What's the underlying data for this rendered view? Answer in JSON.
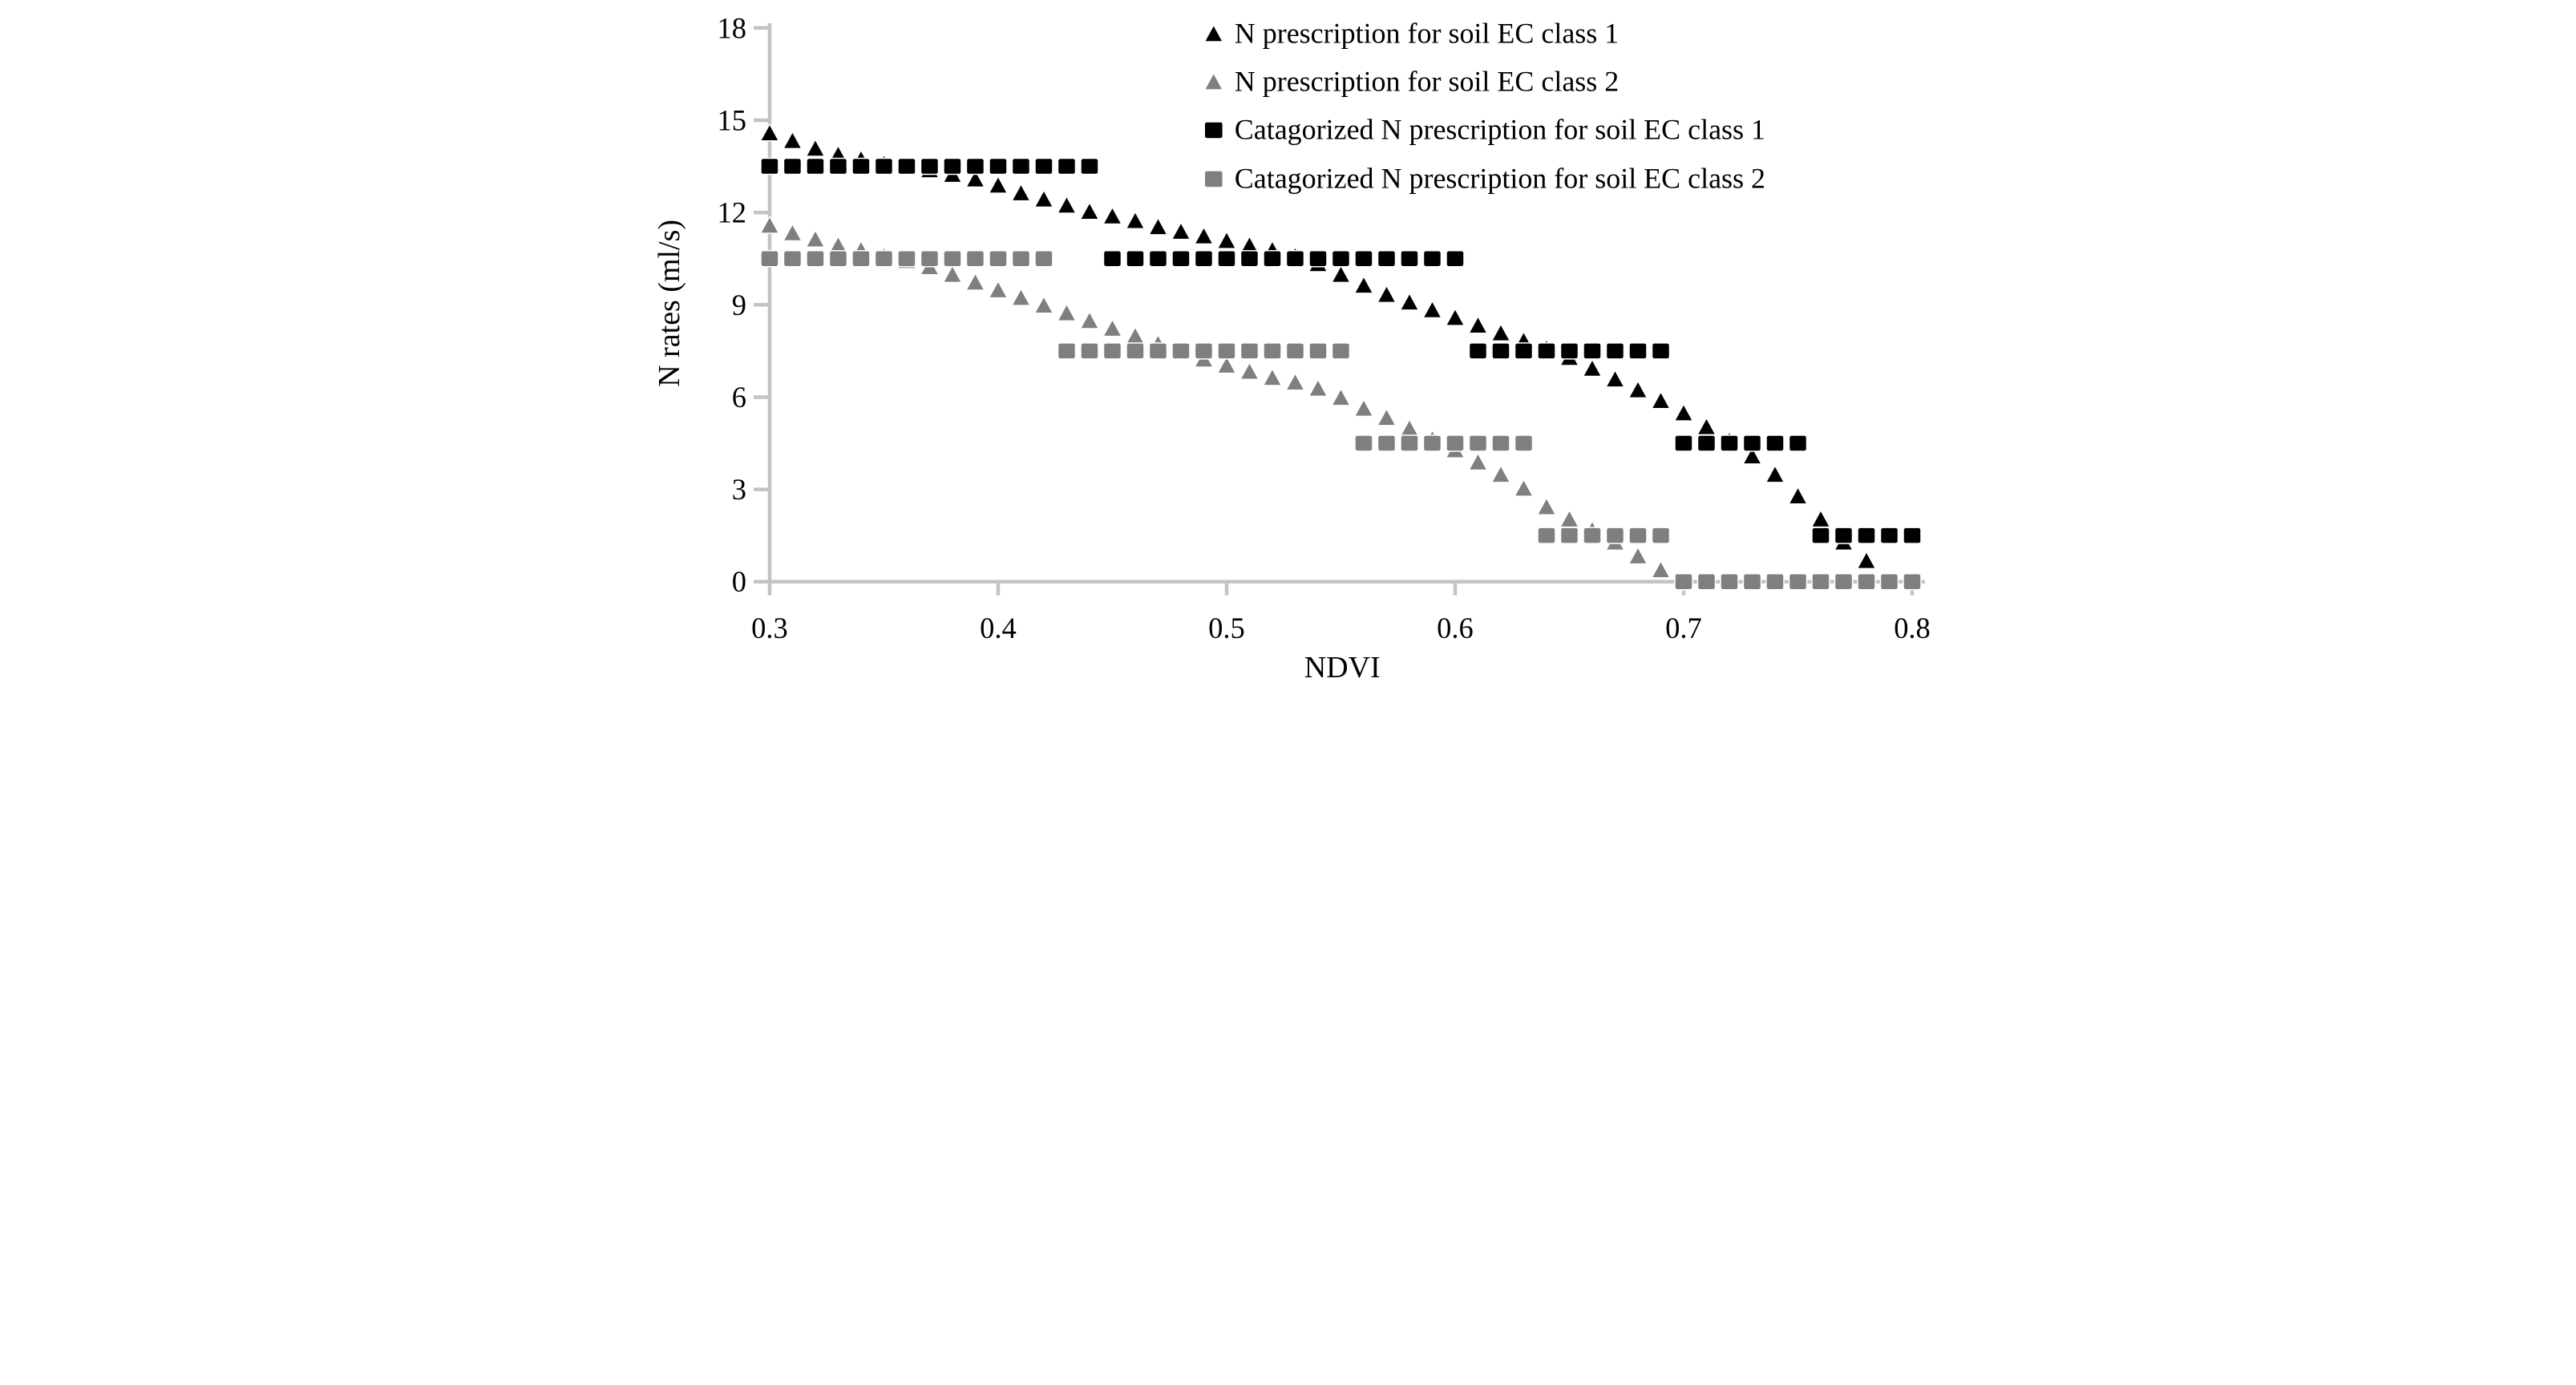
{
  "chart_data": {
    "type": "scatter",
    "title": "",
    "xlabel": "NDVI",
    "ylabel": "N rates (ml/s)",
    "xlim": [
      0.3,
      0.8
    ],
    "ylim": [
      0,
      18
    ],
    "x_ticks": [
      "0.3",
      "0.4",
      "0.5",
      "0.6",
      "0.7",
      "0.8"
    ],
    "y_ticks": [
      "0",
      "3",
      "6",
      "9",
      "12",
      "15",
      "18"
    ],
    "grid": false,
    "legend_position": "top-right-inside",
    "colors": {
      "class1": "#000000",
      "class2": "#7f7f7f",
      "axis": "#c3c3c3",
      "text": "#000000",
      "background": "#ffffff"
    },
    "series": [
      {
        "name": "N prescription for soil EC class 1",
        "marker": "triangle",
        "color": "#000000",
        "points": [
          [
            0.3,
            14.6
          ],
          [
            0.31,
            14.35
          ],
          [
            0.32,
            14.1
          ],
          [
            0.33,
            13.9
          ],
          [
            0.34,
            13.75
          ],
          [
            0.35,
            13.6
          ],
          [
            0.36,
            13.5
          ],
          [
            0.37,
            13.4
          ],
          [
            0.38,
            13.25
          ],
          [
            0.39,
            13.1
          ],
          [
            0.4,
            12.9
          ],
          [
            0.41,
            12.65
          ],
          [
            0.42,
            12.45
          ],
          [
            0.43,
            12.25
          ],
          [
            0.44,
            12.05
          ],
          [
            0.45,
            11.9
          ],
          [
            0.46,
            11.75
          ],
          [
            0.47,
            11.55
          ],
          [
            0.48,
            11.4
          ],
          [
            0.49,
            11.25
          ],
          [
            0.5,
            11.1
          ],
          [
            0.51,
            10.95
          ],
          [
            0.52,
            10.8
          ],
          [
            0.53,
            10.6
          ],
          [
            0.54,
            10.35
          ],
          [
            0.55,
            10.0
          ],
          [
            0.56,
            9.65
          ],
          [
            0.57,
            9.35
          ],
          [
            0.58,
            9.1
          ],
          [
            0.59,
            8.85
          ],
          [
            0.6,
            8.6
          ],
          [
            0.61,
            8.35
          ],
          [
            0.62,
            8.1
          ],
          [
            0.63,
            7.85
          ],
          [
            0.64,
            7.6
          ],
          [
            0.65,
            7.3
          ],
          [
            0.66,
            6.95
          ],
          [
            0.67,
            6.6
          ],
          [
            0.68,
            6.25
          ],
          [
            0.69,
            5.9
          ],
          [
            0.7,
            5.5
          ],
          [
            0.71,
            5.05
          ],
          [
            0.72,
            4.6
          ],
          [
            0.73,
            4.1
          ],
          [
            0.74,
            3.5
          ],
          [
            0.75,
            2.8
          ],
          [
            0.76,
            2.05
          ],
          [
            0.77,
            1.3
          ],
          [
            0.78,
            0.7
          ]
        ]
      },
      {
        "name": "N prescription for soil EC class 2",
        "marker": "triangle",
        "color": "#7f7f7f",
        "points": [
          [
            0.3,
            11.6
          ],
          [
            0.31,
            11.35
          ],
          [
            0.32,
            11.15
          ],
          [
            0.33,
            10.95
          ],
          [
            0.34,
            10.8
          ],
          [
            0.35,
            10.6
          ],
          [
            0.36,
            10.45
          ],
          [
            0.37,
            10.25
          ],
          [
            0.38,
            10.0
          ],
          [
            0.39,
            9.75
          ],
          [
            0.4,
            9.5
          ],
          [
            0.41,
            9.25
          ],
          [
            0.42,
            9.0
          ],
          [
            0.43,
            8.75
          ],
          [
            0.44,
            8.5
          ],
          [
            0.45,
            8.25
          ],
          [
            0.46,
            8.0
          ],
          [
            0.47,
            7.75
          ],
          [
            0.48,
            7.5
          ],
          [
            0.49,
            7.25
          ],
          [
            0.5,
            7.05
          ],
          [
            0.51,
            6.85
          ],
          [
            0.52,
            6.65
          ],
          [
            0.53,
            6.5
          ],
          [
            0.54,
            6.3
          ],
          [
            0.55,
            6.0
          ],
          [
            0.56,
            5.65
          ],
          [
            0.57,
            5.35
          ],
          [
            0.58,
            5.0
          ],
          [
            0.59,
            4.65
          ],
          [
            0.6,
            4.3
          ],
          [
            0.61,
            3.9
          ],
          [
            0.62,
            3.5
          ],
          [
            0.63,
            3.05
          ],
          [
            0.64,
            2.45
          ],
          [
            0.65,
            2.05
          ],
          [
            0.66,
            1.7
          ],
          [
            0.67,
            1.3
          ],
          [
            0.68,
            0.85
          ],
          [
            0.69,
            0.4
          ],
          [
            0.7,
            0.0
          ]
        ]
      },
      {
        "name": "Catagorized N prescription for soil EC class 1",
        "marker": "square",
        "color": "#000000",
        "x_step": 0.01,
        "steps": [
          {
            "x_from": 0.3,
            "x_to": 0.44,
            "value": 13.5
          },
          {
            "x_from": 0.45,
            "x_to": 0.6,
            "value": 10.5
          },
          {
            "x_from": 0.61,
            "x_to": 0.69,
            "value": 7.5
          },
          {
            "x_from": 0.7,
            "x_to": 0.75,
            "value": 4.5
          },
          {
            "x_from": 0.76,
            "x_to": 0.8,
            "value": 1.5
          }
        ]
      },
      {
        "name": "Catagorized N prescription for soil EC class 2",
        "marker": "square",
        "color": "#7f7f7f",
        "x_step": 0.01,
        "steps": [
          {
            "x_from": 0.3,
            "x_to": 0.42,
            "value": 10.5
          },
          {
            "x_from": 0.43,
            "x_to": 0.55,
            "value": 7.5
          },
          {
            "x_from": 0.56,
            "x_to": 0.63,
            "value": 4.5
          },
          {
            "x_from": 0.64,
            "x_to": 0.69,
            "value": 1.5
          },
          {
            "x_from": 0.7,
            "x_to": 0.8,
            "value": 0
          }
        ]
      }
    ],
    "legend": [
      {
        "label": "N prescription for soil EC class 1",
        "marker": "triangle",
        "color": "#000000"
      },
      {
        "label": "N prescription for soil EC class 2",
        "marker": "triangle",
        "color": "#7f7f7f"
      },
      {
        "label": "Catagorized N prescription for soil EC class 1",
        "marker": "square",
        "color": "#000000"
      },
      {
        "label": "Catagorized N prescription for soil EC class 2",
        "marker": "square",
        "color": "#7f7f7f"
      }
    ]
  }
}
